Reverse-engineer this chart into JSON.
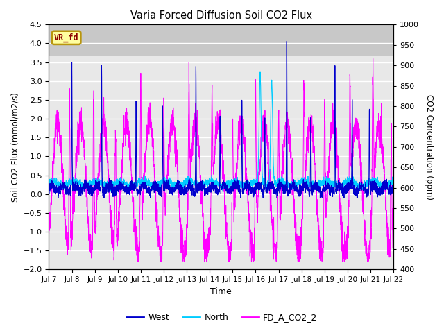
{
  "title": "Varia Forced Diffusion Soil CO2 Flux",
  "xlabel": "Time",
  "ylabel_left": "Soil CO2 Flux (mmol/m2/s)",
  "ylabel_right": "CO2 Concentration (ppm)",
  "ylim_left": [
    -2.0,
    4.5
  ],
  "ylim_right": [
    400,
    1000
  ],
  "yticks_left": [
    -2.0,
    -1.5,
    -1.0,
    -0.5,
    0.0,
    0.5,
    1.0,
    1.5,
    2.0,
    2.5,
    3.0,
    3.5,
    4.0,
    4.5
  ],
  "yticks_right": [
    400,
    450,
    500,
    550,
    600,
    650,
    700,
    750,
    800,
    850,
    900,
    950,
    1000
  ],
  "xtick_labels": [
    "Jul 7",
    "Jul 8",
    "Jul 9",
    "Jul 10",
    "Jul 11",
    "Jul 12",
    "Jul 13",
    "Jul 14",
    "Jul 15",
    "Jul 16",
    "Jul 17",
    "Jul 18",
    "Jul 19",
    "Jul 20",
    "Jul 21",
    "Jul 22"
  ],
  "color_west": "#0000cd",
  "color_north": "#00ccff",
  "color_co2": "#ff00ff",
  "label_west": "West",
  "label_north": "North",
  "label_co2": "FD_A_CO2_2",
  "vr_fd_text": "VR_fd",
  "vr_fd_color": "#8b0000",
  "vr_fd_bg": "#ffffa0",
  "vr_fd_border": "#b8960c",
  "n_points": 3000,
  "days": 15,
  "seed": 42
}
